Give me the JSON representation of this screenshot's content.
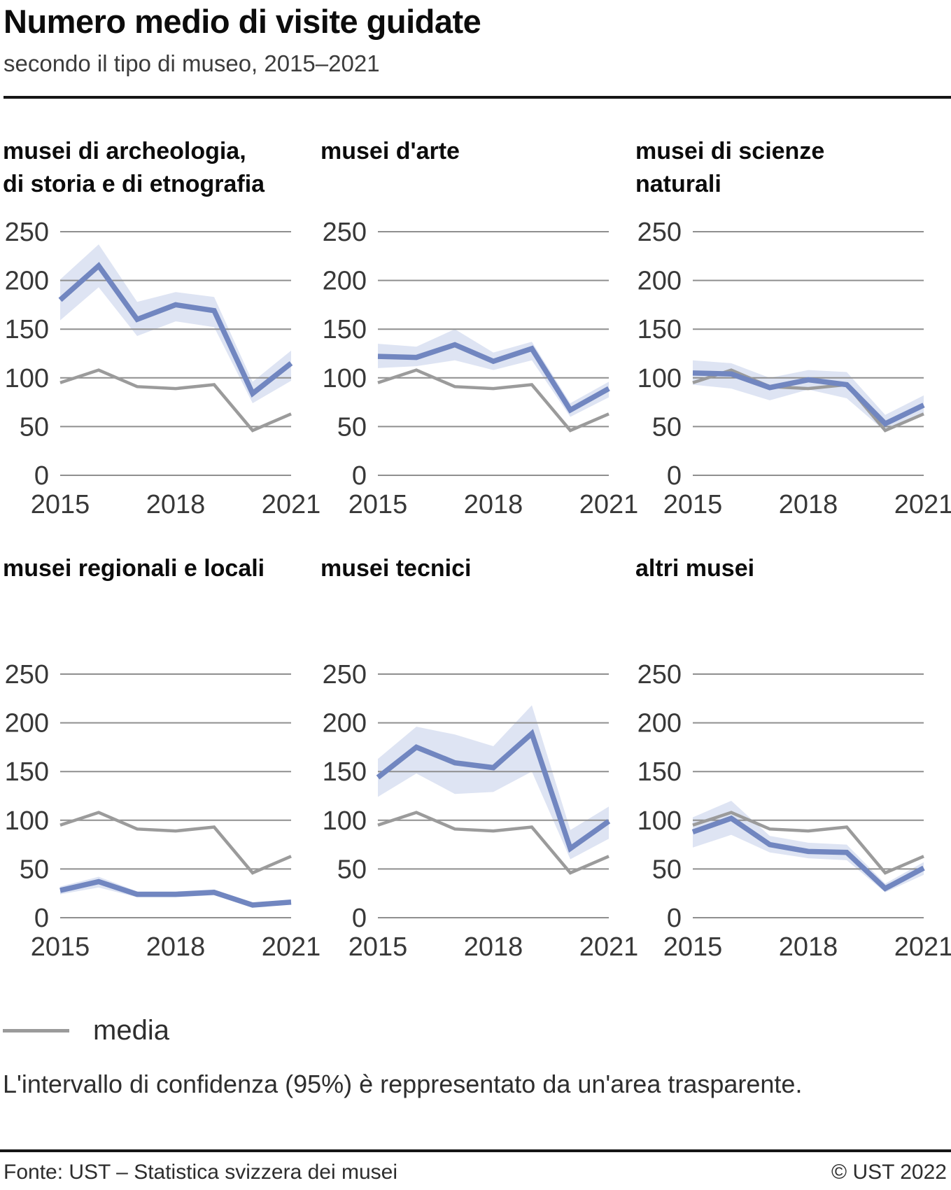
{
  "header": {
    "title": "Numero medio di visite guidate",
    "subtitle": "secondo il tipo di museo, 2015–2021"
  },
  "legend": {
    "media_label": "media",
    "note": "L'intervallo di confidenza (95%) è reppresentato da un'area trasparente."
  },
  "footer": {
    "source": "Fonte: UST – Statistica svizzera dei musei",
    "copyright": "© UST 2022"
  },
  "colors": {
    "series_line": "#7186c0",
    "ci_band": "#dee4f3",
    "media_line": "#9b9b9b",
    "gridline": "#8f8f8f",
    "tick_text": "#383838"
  },
  "chart_data": [
    {
      "type": "line",
      "title_lines": [
        "musei di archeologia,",
        "di storia e di etnografia"
      ],
      "x": [
        2015,
        2016,
        2017,
        2018,
        2019,
        2020,
        2021
      ],
      "series": [
        {
          "name": "musei di archeologia, di storia e di etnografia",
          "values": [
            180,
            215,
            160,
            175,
            169,
            84,
            115
          ]
        },
        {
          "name": "media",
          "values": [
            95,
            108,
            91,
            89,
            93,
            46,
            63
          ]
        }
      ],
      "ci_lower": [
        159,
        193,
        143,
        158,
        152,
        74,
        97
      ],
      "ci_upper": [
        201,
        237,
        178,
        188,
        183,
        96,
        128
      ],
      "ylim": [
        0,
        250
      ],
      "yticks": [
        0,
        50,
        100,
        150,
        200,
        250
      ],
      "xticks": [
        2015,
        2018,
        2021
      ]
    },
    {
      "type": "line",
      "title_lines": [
        "musei d'arte"
      ],
      "x": [
        2015,
        2016,
        2017,
        2018,
        2019,
        2020,
        2021
      ],
      "series": [
        {
          "name": "musei d'arte",
          "values": [
            122,
            121,
            134,
            117,
            130,
            67,
            89
          ]
        },
        {
          "name": "media",
          "values": [
            95,
            108,
            91,
            89,
            93,
            46,
            63
          ]
        }
      ],
      "ci_lower": [
        110,
        112,
        118,
        108,
        118,
        60,
        80
      ],
      "ci_upper": [
        135,
        132,
        150,
        126,
        137,
        74,
        96
      ],
      "ylim": [
        0,
        250
      ],
      "yticks": [
        0,
        50,
        100,
        150,
        200,
        250
      ],
      "xticks": [
        2015,
        2018,
        2021
      ]
    },
    {
      "type": "line",
      "title_lines": [
        "musei di scienze",
        "naturali"
      ],
      "x": [
        2015,
        2016,
        2017,
        2018,
        2019,
        2020,
        2021
      ],
      "series": [
        {
          "name": "musei di scienze naturali",
          "values": [
            105,
            104,
            90,
            98,
            93,
            53,
            72
          ]
        },
        {
          "name": "media",
          "values": [
            95,
            108,
            91,
            89,
            93,
            46,
            63
          ]
        }
      ],
      "ci_lower": [
        93,
        89,
        77,
        88,
        79,
        45,
        62
      ],
      "ci_upper": [
        118,
        115,
        100,
        108,
        106,
        62,
        82
      ],
      "ylim": [
        0,
        250
      ],
      "yticks": [
        0,
        50,
        100,
        150,
        200,
        250
      ],
      "xticks": [
        2015,
        2018,
        2021
      ]
    },
    {
      "type": "line",
      "title_lines": [
        "musei regionali e locali"
      ],
      "x": [
        2015,
        2016,
        2017,
        2018,
        2019,
        2020,
        2021
      ],
      "series": [
        {
          "name": "musei regionali e locali",
          "values": [
            28,
            37,
            24,
            24,
            26,
            13,
            16
          ]
        },
        {
          "name": "media",
          "values": [
            95,
            108,
            91,
            89,
            93,
            46,
            63
          ]
        }
      ],
      "ci_lower": [
        24,
        31,
        21,
        21,
        23,
        11,
        14
      ],
      "ci_upper": [
        32,
        42,
        27,
        27,
        29,
        15,
        18
      ],
      "ylim": [
        0,
        250
      ],
      "yticks": [
        0,
        50,
        100,
        150,
        200,
        250
      ],
      "xticks": [
        2015,
        2018,
        2021
      ]
    },
    {
      "type": "line",
      "title_lines": [
        "musei tecnici"
      ],
      "x": [
        2015,
        2016,
        2017,
        2018,
        2019,
        2020,
        2021
      ],
      "series": [
        {
          "name": "musei tecnici",
          "values": [
            144,
            175,
            159,
            154,
            189,
            71,
            99
          ]
        },
        {
          "name": "media",
          "values": [
            95,
            108,
            91,
            89,
            93,
            46,
            63
          ]
        }
      ],
      "ci_lower": [
        124,
        148,
        127,
        129,
        150,
        60,
        81
      ],
      "ci_upper": [
        163,
        196,
        188,
        176,
        218,
        90,
        114
      ],
      "ylim": [
        0,
        250
      ],
      "yticks": [
        0,
        50,
        100,
        150,
        200,
        250
      ],
      "xticks": [
        2015,
        2018,
        2021
      ]
    },
    {
      "type": "line",
      "title_lines": [
        "altri musei"
      ],
      "x": [
        2015,
        2016,
        2017,
        2018,
        2019,
        2020,
        2021
      ],
      "series": [
        {
          "name": "altri musei",
          "values": [
            88,
            102,
            75,
            68,
            67,
            30,
            51
          ]
        },
        {
          "name": "media",
          "values": [
            95,
            108,
            91,
            89,
            93,
            46,
            63
          ]
        }
      ],
      "ci_lower": [
        72,
        85,
        67,
        61,
        59,
        26,
        44
      ],
      "ci_upper": [
        103,
        120,
        84,
        77,
        75,
        35,
        57
      ],
      "ylim": [
        0,
        250
      ],
      "yticks": [
        0,
        50,
        100,
        150,
        200,
        250
      ],
      "xticks": [
        2015,
        2018,
        2021
      ]
    }
  ]
}
